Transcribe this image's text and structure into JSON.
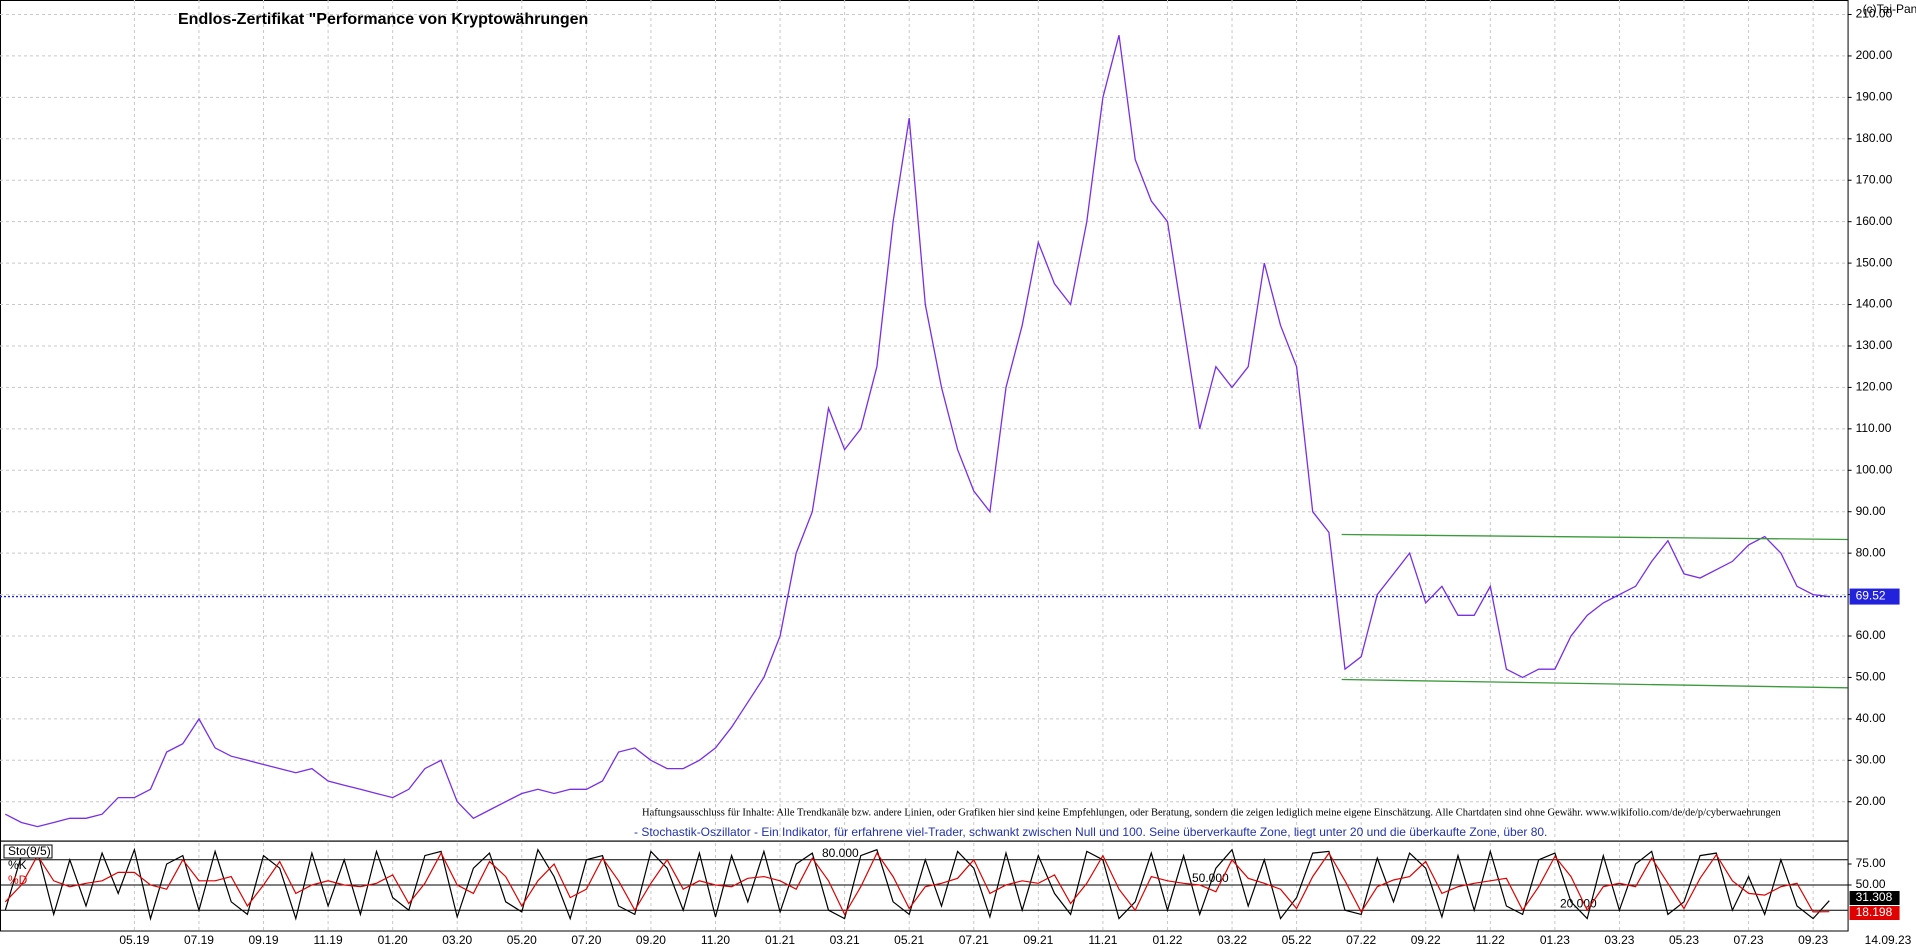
{
  "chart_data": [
    {
      "type": "line",
      "title": "Endlos-Zertifikat \"Performance von Kryptowährungen",
      "source": "(c)Tai-Pan",
      "date": "14.09.23",
      "disclaimer": "Haftungsausschluss für Inhalte: Alle Trendkanäle bzw. andere Linien, oder Grafiken hier sind keine Empfehlungen, oder Beratung, sondern die zeigen lediglich meine eigene Einschätzung. Alle Chartdaten sind ohne Gewähr.  www.wikifolio.com/de/de/p/cyberwaehrungen",
      "categories": [
        null,
        null,
        null,
        null,
        null,
        null,
        null,
        null,
        "05.19",
        null,
        null,
        null,
        "07.19",
        null,
        null,
        null,
        "09.19",
        null,
        null,
        null,
        "11.19",
        null,
        null,
        null,
        "01.20",
        null,
        null,
        null,
        "03.20",
        null,
        null,
        null,
        "05.20",
        null,
        null,
        null,
        "07.20",
        null,
        null,
        null,
        "09.20",
        null,
        null,
        null,
        "11.20",
        null,
        null,
        null,
        "01.21",
        null,
        null,
        null,
        "03.21",
        null,
        null,
        null,
        "05.21",
        null,
        null,
        null,
        "07.21",
        null,
        null,
        null,
        "09.21",
        null,
        null,
        null,
        "11.21",
        null,
        null,
        null,
        "01.22",
        null,
        null,
        null,
        "03.22",
        null,
        null,
        null,
        "05.22",
        null,
        null,
        null,
        "07.22",
        null,
        null,
        null,
        "09.22",
        null,
        null,
        null,
        "11.22",
        null,
        null,
        null,
        "01.23",
        null,
        null,
        null,
        "03.23",
        null,
        null,
        null,
        "05.23",
        null,
        null,
        null,
        "07.23",
        null,
        null,
        null,
        "09.23",
        null
      ],
      "series": [
        {
          "color": "#7a2ee6",
          "values": [
            17,
            15,
            14,
            15,
            16,
            16,
            17,
            21,
            21,
            23,
            32,
            34,
            40,
            33,
            31,
            30,
            29,
            28,
            27,
            28,
            25,
            24,
            23,
            22,
            21,
            23,
            28,
            30,
            20,
            16,
            18,
            20,
            22,
            23,
            22,
            23,
            23,
            25,
            32,
            33,
            30,
            28,
            28,
            30,
            33,
            38,
            44,
            50,
            60,
            80,
            90,
            115,
            105,
            110,
            125,
            160,
            185,
            140,
            120,
            105,
            95,
            90,
            120,
            135,
            155,
            145,
            140,
            160,
            190,
            205,
            175,
            165,
            160,
            135,
            110,
            125,
            120,
            125,
            150,
            135,
            125,
            90,
            85,
            52,
            55,
            70,
            75,
            80,
            68,
            72,
            65,
            65,
            72,
            52,
            50,
            52,
            52,
            60,
            65,
            68,
            70,
            72,
            78,
            83,
            75,
            74,
            76,
            78,
            82,
            84,
            80,
            72,
            70,
            69.52
          ]
        }
      ],
      "current_line_color": "#2222dd",
      "trendlines": [
        {
          "color": "#3c9a3c",
          "values": [
            84.5,
            83.3
          ]
        },
        {
          "color": "#3c9a3c",
          "values": [
            49.5,
            47.5
          ]
        }
      ],
      "ylim": [
        10.6,
        213.5
      ],
      "yticks": [
        {
          "value": 20,
          "label": "20.00"
        },
        {
          "value": 30,
          "label": "30.00"
        },
        {
          "value": 40,
          "label": "40.00"
        },
        {
          "value": 50,
          "label": "50.00"
        },
        {
          "value": 60,
          "label": "60.00"
        },
        {
          "value": 70,
          "label": "70.00"
        },
        {
          "value": 80,
          "label": "80.00"
        },
        {
          "value": 90,
          "label": "90.00"
        },
        {
          "value": 100,
          "label": "100.00"
        },
        {
          "value": 110,
          "label": "110.00"
        },
        {
          "value": 120,
          "label": "120.00"
        },
        {
          "value": 130,
          "label": "130.00"
        },
        {
          "value": 140,
          "label": "140.00"
        },
        {
          "value": 150,
          "label": "150.00"
        },
        {
          "value": 160,
          "label": "160.00"
        },
        {
          "value": 170,
          "label": "170.00"
        },
        {
          "value": 180,
          "label": "180.00"
        },
        {
          "value": 190,
          "label": "190.00"
        },
        {
          "value": 200,
          "label": "200.00"
        },
        {
          "value": 210,
          "label": "210.00"
        }
      ],
      "grid": true
    },
    {
      "type": "line",
      "title": "Sto(9/5)",
      "description": "- Stochastik-Oszillator - Ein Indikator, für erfahrene viel-Trader, schwankt zwischen Null und 100. Seine überverkaufte Zone, liegt unter 20 und die überkaufte Zone, über 80.",
      "series": [
        {
          "name": "%K",
          "color": "#000000",
          "values": [
            20,
            85,
            90,
            15,
            80,
            25,
            88,
            40,
            92,
            10,
            75,
            85,
            20,
            90,
            30,
            15,
            85,
            70,
            10,
            88,
            25,
            80,
            15,
            90,
            35,
            20,
            85,
            90,
            12,
            70,
            88,
            30,
            18,
            92,
            60,
            10,
            80,
            85,
            25,
            15,
            90,
            70,
            20,
            88,
            12,
            85,
            30,
            90,
            18,
            75,
            88,
            20,
            10,
            85,
            92,
            30,
            15,
            80,
            25,
            90,
            70,
            12,
            88,
            20,
            85,
            40,
            15,
            90,
            80,
            10,
            30,
            88,
            20,
            85,
            15,
            70,
            92,
            25,
            80,
            10,
            35,
            88,
            90,
            20,
            15,
            82,
            30,
            88,
            70,
            12,
            85,
            20,
            90,
            25,
            15,
            80,
            88,
            30,
            10,
            85,
            20,
            75,
            90,
            15,
            30,
            85,
            88,
            20,
            60,
            15,
            80,
            25,
            10,
            31.308
          ]
        },
        {
          "name": "%D",
          "color": "#e00000",
          "values": [
            30,
            50,
            85,
            55,
            48,
            52,
            55,
            65,
            65,
            50,
            45,
            80,
            55,
            55,
            60,
            25,
            50,
            78,
            40,
            50,
            55,
            50,
            48,
            52,
            62,
            28,
            52,
            88,
            50,
            40,
            78,
            60,
            25,
            55,
            75,
            35,
            45,
            82,
            55,
            20,
            52,
            80,
            45,
            55,
            50,
            48,
            58,
            60,
            55,
            45,
            82,
            55,
            15,
            48,
            88,
            60,
            22,
            48,
            52,
            58,
            80,
            40,
            50,
            55,
            52,
            62,
            28,
            52,
            85,
            45,
            20,
            60,
            55,
            52,
            50,
            42,
            80,
            58,
            52,
            45,
            22,
            60,
            88,
            55,
            18,
            48,
            56,
            60,
            78,
            40,
            48,
            52,
            55,
            58,
            20,
            48,
            84,
            60,
            20,
            48,
            52,
            48,
            82,
            52,
            22,
            58,
            86,
            55,
            40,
            38,
            48,
            52,
            18,
            18.198
          ]
        }
      ],
      "levels": [
        {
          "value": 80,
          "label": "80.000"
        },
        {
          "value": 50,
          "label": "50.000"
        },
        {
          "value": 20,
          "label": "20.000"
        }
      ],
      "ylim": [
        0,
        100
      ],
      "yticks": [
        {
          "value": 75,
          "label": "75.00"
        },
        {
          "value": 50,
          "label": "50.00"
        }
      ]
    }
  ]
}
